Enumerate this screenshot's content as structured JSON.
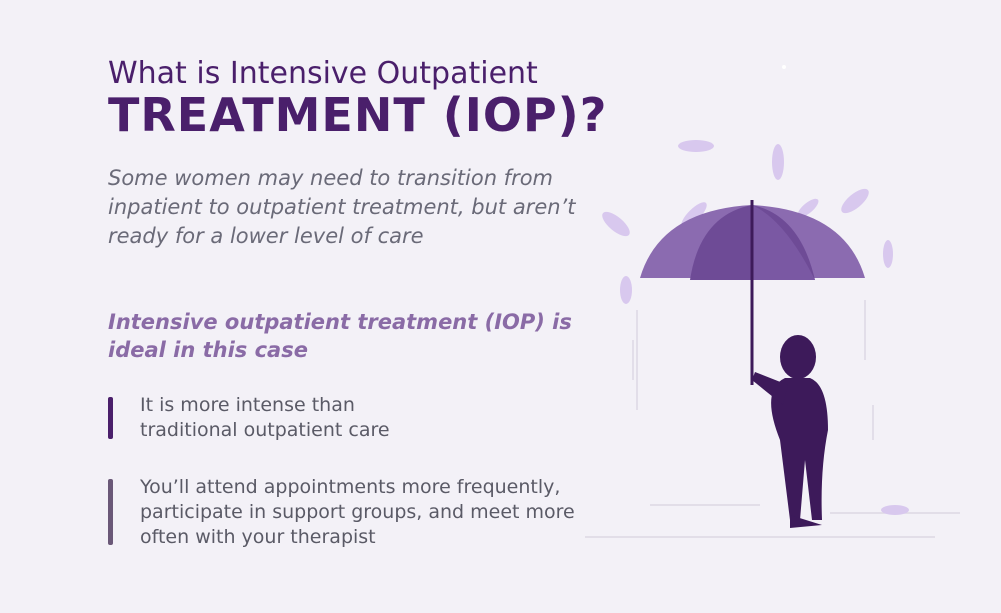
{
  "header": {
    "title_line1": "What is Intensive Outpatient",
    "title_line2": "TREATMENT (IOP)?",
    "intro": "Some women may need to transition from inpatient to outpatient treatment, but aren’t ready for a lower level of care"
  },
  "section": {
    "heading": "Intensive outpatient treatment (IOP) is ideal in this case",
    "points": [
      "It is more intense than traditional outpatient care",
      "You’ll attend appointments more frequently, participate in support groups, and meet more often with your therapist"
    ]
  }
}
